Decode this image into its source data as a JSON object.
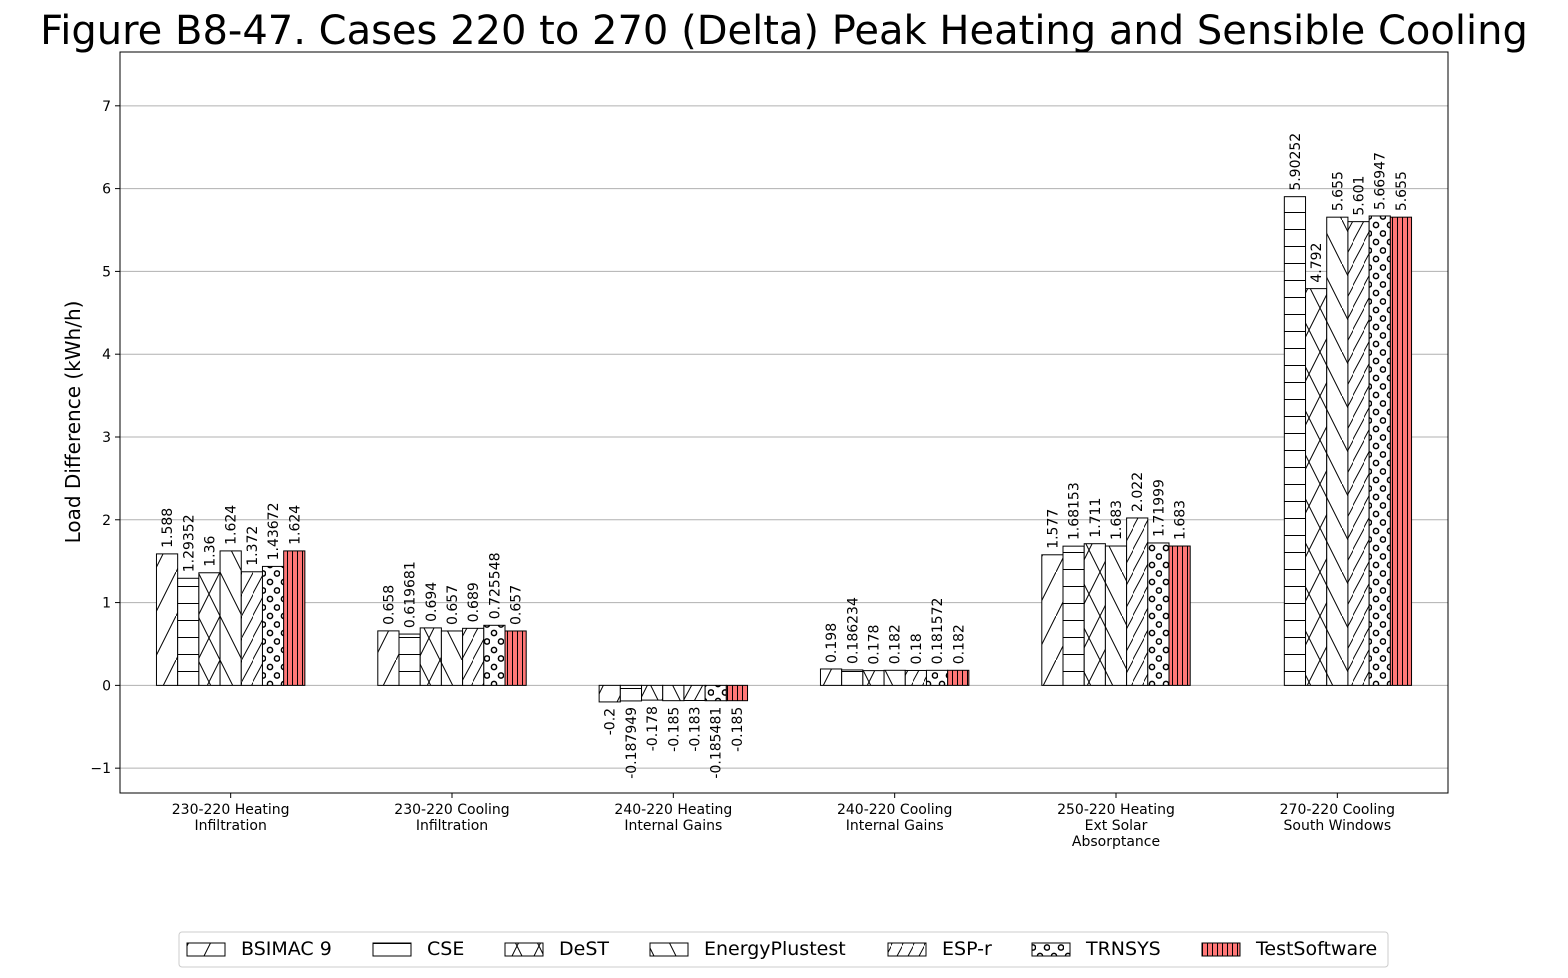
{
  "chart_data": {
    "type": "bar",
    "title": "Figure B8-47. Cases 220 to 270 (Delta) Peak Heating and Sensible Cooling",
    "ylabel": "Load Difference (kWh/h)",
    "xlabel": "",
    "ylim": [
      -1.3,
      7.65
    ],
    "yticks": [
      -1,
      0,
      1,
      2,
      3,
      4,
      5,
      6,
      7
    ],
    "ytick_labels": [
      "−1",
      "0",
      "1",
      "2",
      "3",
      "4",
      "5",
      "6",
      "7"
    ],
    "grid": "horizontal",
    "legend_position": "bottom-center",
    "categories": [
      [
        "230-220 Heating",
        "Infiltration"
      ],
      [
        "230-220 Cooling",
        "Infiltration"
      ],
      [
        "240-220 Heating",
        "Internal Gains"
      ],
      [
        "240-220 Cooling",
        "Internal Gains"
      ],
      [
        "250-220 Heating",
        "Ext Solar",
        "Absorptance"
      ],
      [
        "270-220 Cooling",
        "South Windows"
      ]
    ],
    "series": [
      {
        "name": "BSIMAC 9",
        "hatch": "slash",
        "color": "#ffffff",
        "values": [
          1.588,
          0.658,
          -0.2,
          0.198,
          1.577,
          null
        ],
        "labels": [
          "1.588",
          "0.658",
          "-0.2",
          "0.198",
          "1.577",
          ""
        ]
      },
      {
        "name": "CSE",
        "hatch": "horizontal",
        "color": "#ffffff",
        "values": [
          1.29352,
          0.619681,
          -0.187949,
          0.186234,
          1.68153,
          5.90252
        ],
        "labels": [
          "1.29352",
          "0.619681",
          "-0.187949",
          "0.186234",
          "1.68153",
          "5.90252"
        ]
      },
      {
        "name": "DeST",
        "hatch": "cross",
        "color": "#ffffff",
        "values": [
          1.36,
          0.694,
          -0.178,
          0.178,
          1.711,
          4.792
        ],
        "labels": [
          "1.36",
          "0.694",
          "-0.178",
          "0.178",
          "1.711",
          "4.792"
        ]
      },
      {
        "name": "EnergyPlustest",
        "hatch": "backslash",
        "color": "#ffffff",
        "values": [
          1.624,
          0.657,
          -0.185,
          0.182,
          1.683,
          5.655
        ],
        "labels": [
          "1.624",
          "0.657",
          "-0.185",
          "0.182",
          "1.683",
          "5.655"
        ]
      },
      {
        "name": "ESP-r",
        "hatch": "dense-slash",
        "color": "#ffffff",
        "values": [
          1.372,
          0.689,
          -0.183,
          0.18,
          2.022,
          5.601
        ],
        "labels": [
          "1.372",
          "0.689",
          "-0.183",
          "0.18",
          "2.022",
          "5.601"
        ]
      },
      {
        "name": "TRNSYS",
        "hatch": "circles",
        "color": "#ffffff",
        "values": [
          1.43672,
          0.725548,
          -0.185481,
          0.181572,
          1.71999,
          5.66947
        ],
        "labels": [
          "1.43672",
          "0.725548",
          "-0.185481",
          "0.181572",
          "1.71999",
          "5.66947"
        ]
      },
      {
        "name": "TestSoftware",
        "hatch": "vertical",
        "color": "#ff7777",
        "values": [
          1.624,
          0.657,
          -0.185,
          0.182,
          1.683,
          5.655
        ],
        "labels": [
          "1.624",
          "0.657",
          "-0.185",
          "0.182",
          "1.683",
          "5.655"
        ]
      }
    ]
  }
}
